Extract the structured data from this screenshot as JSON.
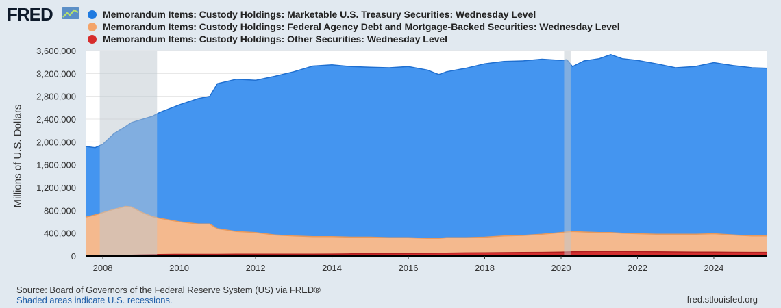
{
  "brand": "FRED",
  "icons": {
    "logo": "line-chart-icon"
  },
  "footer": {
    "source": "Source: Board of Governors of the Federal Reserve System (US) via FRED®",
    "recession_note": "Shaded areas indicate U.S. recessions.",
    "site": "fred.stlouisfed.org"
  },
  "chart_data": {
    "type": "area",
    "stacked": true,
    "ylabel": "Millions of U.S. Dollars",
    "xlabel": "",
    "ylim": [
      0,
      3600000
    ],
    "yticks": [
      0,
      400000,
      800000,
      1200000,
      1600000,
      2000000,
      2400000,
      2800000,
      3200000,
      3600000
    ],
    "ytick_labels": [
      "0",
      "400,000",
      "800,000",
      "1,200,000",
      "1,600,000",
      "2,000,000",
      "2,400,000",
      "2,800,000",
      "3,200,000",
      "3,600,000"
    ],
    "xlim": [
      2007.55,
      2025.4
    ],
    "xticks": [
      2008,
      2010,
      2012,
      2014,
      2016,
      2018,
      2020,
      2022,
      2024
    ],
    "xtick_labels": [
      "2008",
      "2010",
      "2012",
      "2014",
      "2016",
      "2018",
      "2020",
      "2022",
      "2024"
    ],
    "recessions": [
      [
        2007.92,
        2009.42
      ],
      [
        2020.08,
        2020.25
      ]
    ],
    "x": [
      2007.55,
      2007.8,
      2008.0,
      2008.3,
      2008.6,
      2008.75,
      2009.0,
      2009.3,
      2009.5,
      2010.0,
      2010.5,
      2010.8,
      2011.0,
      2011.5,
      2012.0,
      2012.5,
      2013.0,
      2013.5,
      2014.0,
      2014.5,
      2015.0,
      2015.5,
      2016.0,
      2016.5,
      2016.8,
      2017.0,
      2017.5,
      2018.0,
      2018.5,
      2019.0,
      2019.5,
      2020.0,
      2020.15,
      2020.3,
      2020.6,
      2021.0,
      2021.3,
      2021.6,
      2022.0,
      2022.5,
      2023.0,
      2023.5,
      2024.0,
      2024.5,
      2025.0,
      2025.4
    ],
    "series": [
      {
        "name": "Memorandum Items: Custody Holdings: Marketable U.S. Treasury Securities: Wednesday Level",
        "color": "#4495f0",
        "legend_color": "#1f7ae0",
        "total": [
          1920000,
          1900000,
          1960000,
          2150000,
          2270000,
          2340000,
          2390000,
          2450000,
          2520000,
          2650000,
          2760000,
          2800000,
          3020000,
          3100000,
          3080000,
          3150000,
          3230000,
          3330000,
          3350000,
          3320000,
          3310000,
          3300000,
          3320000,
          3260000,
          3180000,
          3230000,
          3290000,
          3370000,
          3410000,
          3420000,
          3450000,
          3430000,
          3440000,
          3320000,
          3420000,
          3460000,
          3530000,
          3460000,
          3430000,
          3370000,
          3300000,
          3320000,
          3390000,
          3340000,
          3300000,
          3290000
        ]
      },
      {
        "name": "Memorandum Items: Custody Holdings: Federal Agency Debt and Mortgage-Backed Securities: Wednesday Level",
        "color": "#f4b98e",
        "legend_color": "#f4a46a",
        "total": [
          680000,
          720000,
          760000,
          820000,
          870000,
          860000,
          770000,
          690000,
          660000,
          600000,
          560000,
          560000,
          480000,
          430000,
          410000,
          370000,
          350000,
          340000,
          340000,
          330000,
          330000,
          320000,
          320000,
          310000,
          310000,
          320000,
          320000,
          330000,
          350000,
          360000,
          380000,
          410000,
          420000,
          430000,
          420000,
          410000,
          410000,
          400000,
          390000,
          380000,
          380000,
          380000,
          390000,
          370000,
          350000,
          350000
        ]
      },
      {
        "name": "Memorandum Items: Custody Holdings: Other Securities: Wednesday Level",
        "color": "#d43030",
        "legend_color": "#d62d2d",
        "total": [
          10000,
          10000,
          10000,
          10000,
          12000,
          15000,
          20000,
          25000,
          28000,
          30000,
          30000,
          30000,
          30000,
          32000,
          32000,
          32000,
          33000,
          34000,
          35000,
          38000,
          40000,
          42000,
          45000,
          48000,
          50000,
          52000,
          55000,
          58000,
          60000,
          62000,
          65000,
          70000,
          72000,
          75000,
          78000,
          80000,
          80000,
          80000,
          78000,
          75000,
          72000,
          70000,
          68000,
          66000,
          65000,
          65000
        ]
      }
    ]
  }
}
